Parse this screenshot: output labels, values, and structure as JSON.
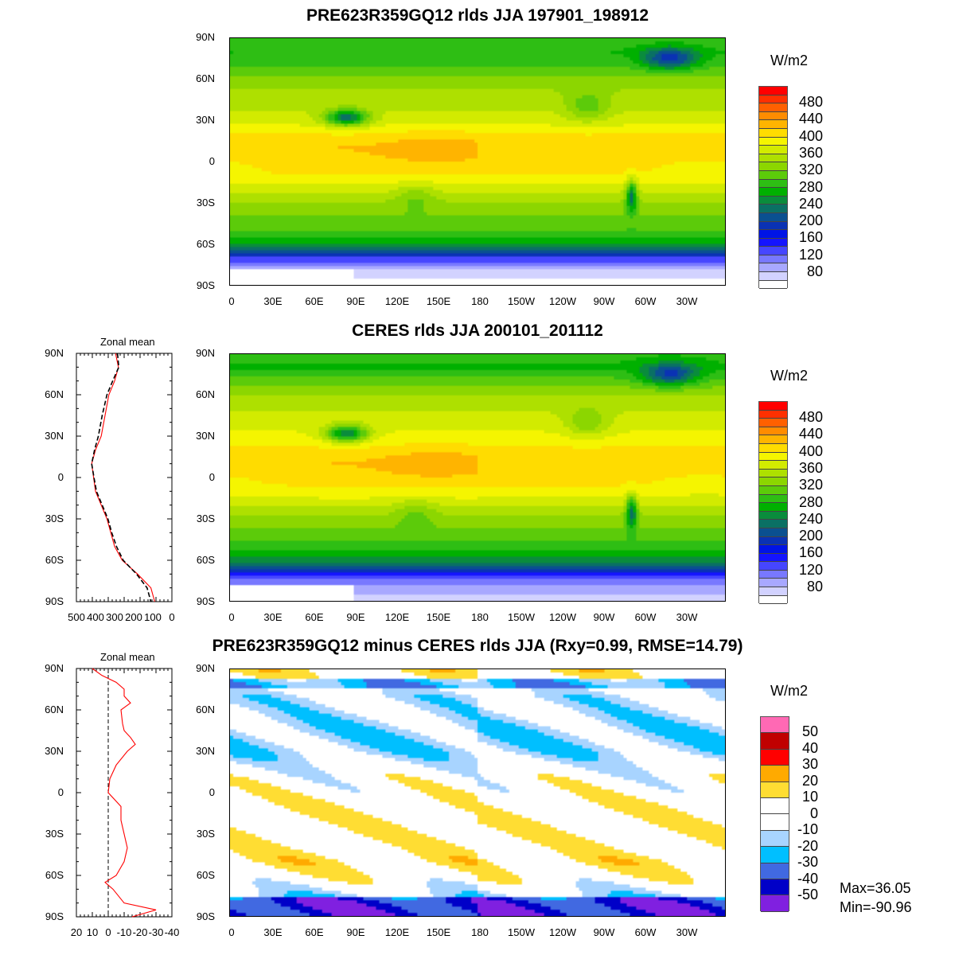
{
  "panels": [
    {
      "title": "PRE623R359GQ12 rlds JJA 197901_198912",
      "units": "W/m2"
    },
    {
      "title": "CERES rlds JJA 200101_201112",
      "units": "W/m2"
    },
    {
      "title": "PRE623R359GQ12 minus CERES rlds JJA (Rxy=0.99, RMSE=14.79)",
      "units": "W/m2",
      "max_label": "Max=36.05",
      "min_label": "Min=-90.96"
    }
  ],
  "lat_labels": [
    "90N",
    "60N",
    "30N",
    "0",
    "30S",
    "60S",
    "90S"
  ],
  "lon_labels": [
    "0",
    "30E",
    "60E",
    "90E",
    "120E",
    "150E",
    "180",
    "150W",
    "120W",
    "90W",
    "60W",
    "30W"
  ],
  "colorbar_full": {
    "labels": [
      "480",
      "440",
      "400",
      "360",
      "320",
      "280",
      "240",
      "200",
      "160",
      "120",
      "80"
    ],
    "colors": [
      "#ff0000",
      "#ff3000",
      "#ff6000",
      "#ff8c00",
      "#ffb400",
      "#ffdc00",
      "#f5f500",
      "#d2eb00",
      "#aee000",
      "#8cd600",
      "#5ccb0a",
      "#2ebe14",
      "#00b000",
      "#0a8c3c",
      "#0a7064",
      "#0a5090",
      "#0a32b4",
      "#0014e6",
      "#1414ff",
      "#4646ff",
      "#7878ff",
      "#a8a8ff",
      "#d2d2ff",
      "#ffffff"
    ]
  },
  "colorbar_diff": {
    "labels": [
      "50",
      "40",
      "30",
      "20",
      "10",
      "0",
      "-10",
      "-20",
      "-30",
      "-40",
      "-50"
    ],
    "colors": [
      "#ff69b4",
      "#c00000",
      "#ff0000",
      "#ffaa00",
      "#ffdd33",
      "#ffffff",
      "#ffffff",
      "#a8d4ff",
      "#00bfff",
      "#4169e1",
      "#0000c8",
      "#8020e0"
    ]
  },
  "chart_data": [
    {
      "type": "heatmap",
      "title": "PRE623R359GQ12 rlds JJA 197901_198912",
      "units": "W/m2",
      "levels_range": [
        80,
        500
      ]
    },
    {
      "type": "heatmap",
      "title": "CERES rlds JJA 200101_201112",
      "units": "W/m2",
      "levels_range": [
        80,
        500
      ]
    },
    {
      "type": "heatmap",
      "title": "PRE623R359GQ12 minus CERES rlds JJA (Rxy=0.99, RMSE=14.79)",
      "units": "W/m2",
      "levels_range": [
        -50,
        50
      ],
      "max": 36.05,
      "min": -90.96
    },
    {
      "type": "line",
      "title": "Zonal mean",
      "xlim": [
        500,
        0
      ],
      "xticks": [
        "500",
        "400",
        "300",
        "200",
        "100",
        "0"
      ],
      "lat": [
        90,
        80,
        70,
        60,
        45,
        30,
        20,
        10,
        0,
        -10,
        -20,
        -30,
        -40,
        -50,
        -60,
        -70,
        -80,
        -90
      ],
      "series": [
        {
          "name": "PRE623R359GQ12",
          "color": "#ff0000",
          "style": "solid",
          "values": [
            295,
            280,
            300,
            330,
            350,
            370,
            400,
            420,
            410,
            400,
            370,
            340,
            320,
            300,
            260,
            180,
            110,
            90
          ]
        },
        {
          "name": "CERES",
          "color": "#000000",
          "style": "dashed",
          "values": [
            285,
            278,
            310,
            340,
            365,
            385,
            405,
            420,
            408,
            395,
            365,
            335,
            315,
            290,
            255,
            185,
            130,
            110
          ]
        }
      ]
    },
    {
      "type": "line",
      "title": "Zonal mean",
      "xlim": [
        20,
        -40
      ],
      "xticks": [
        "20",
        "10",
        "0",
        "-10",
        "-20",
        "-30",
        "-40"
      ],
      "lat": [
        90,
        85,
        80,
        75,
        70,
        65,
        60,
        50,
        45,
        40,
        35,
        30,
        20,
        10,
        0,
        -10,
        -20,
        -30,
        -40,
        -50,
        -60,
        -65,
        -70,
        -80,
        -85,
        -90
      ],
      "series": [
        {
          "name": "PRE623R359GQ12 minus CERES",
          "color": "#ff0000",
          "style": "solid",
          "values": [
            10,
            4,
            -5,
            -10,
            -10,
            -14,
            -8,
            -9,
            -10,
            -14,
            -17,
            -12,
            -5,
            -1,
            0,
            -8,
            -8,
            -10,
            -12,
            -10,
            -5,
            2,
            -3,
            -10,
            -30,
            -15
          ]
        }
      ]
    }
  ]
}
